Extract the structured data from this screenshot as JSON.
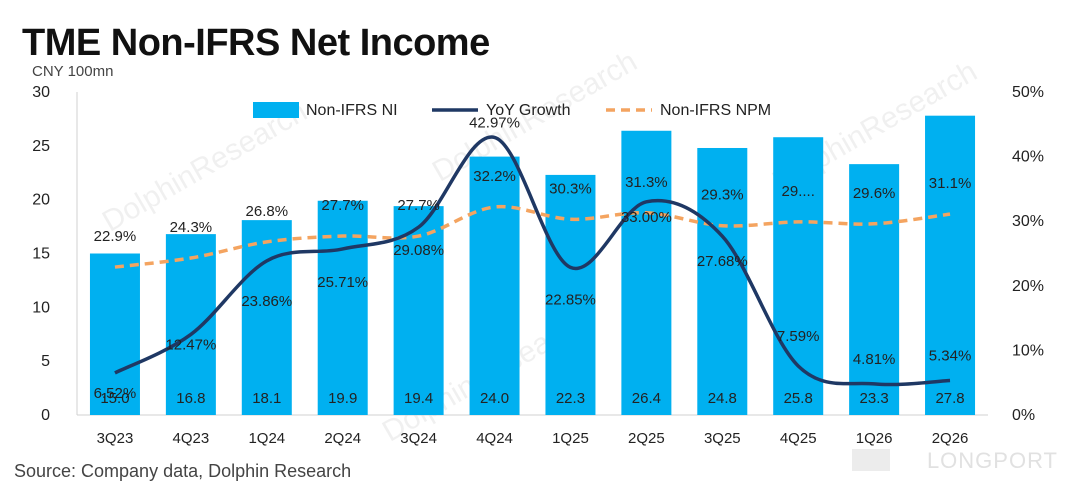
{
  "title": "TME Non-IFRS Net Income",
  "unit": "CNY 100mn",
  "source": "Source: Company data, Dolphin Research",
  "watermark": "LONGPORT",
  "diag_watermark": "DolphinResearch",
  "colors": {
    "bar": "#00b0f0",
    "growth_line": "#1f3864",
    "npm_line": "#f4a460"
  },
  "chart_data": {
    "type": "bar",
    "title": "TME Non-IFRS Net Income",
    "categories": [
      "3Q23",
      "4Q23",
      "1Q24",
      "2Q24",
      "3Q24",
      "4Q24",
      "1Q25",
      "2Q25",
      "3Q25",
      "4Q25",
      "1Q26",
      "2Q26"
    ],
    "series": [
      {
        "name": "Non-IFRS NI",
        "type": "bar",
        "axis": "left",
        "values": [
          15.0,
          16.8,
          18.1,
          19.9,
          19.4,
          24.0,
          22.3,
          26.4,
          24.8,
          25.8,
          23.3,
          27.8
        ],
        "labels": [
          "15.0",
          "16.8",
          "18.1",
          "19.9",
          "19.4",
          "24.0",
          "22.3",
          "26.4",
          "24.8",
          "25.8",
          "23.3",
          "27.8"
        ]
      },
      {
        "name": "YoY Growth",
        "type": "line",
        "axis": "right",
        "values": [
          6.52,
          12.47,
          23.86,
          25.71,
          29.08,
          42.97,
          22.85,
          33.0,
          27.68,
          7.59,
          4.81,
          5.34
        ],
        "labels": [
          "6.52%",
          "12.47%",
          "23.86%",
          "25.71%",
          "29.08%",
          "42.97%",
          "22.85%",
          "33.00%",
          "27.68%",
          "7.59%",
          "4.81%",
          "5.34%"
        ]
      },
      {
        "name": "Non-IFRS NPM",
        "type": "line",
        "style": "dashed",
        "axis": "right",
        "values": [
          22.9,
          24.3,
          26.8,
          27.7,
          27.7,
          32.2,
          30.3,
          31.3,
          29.3,
          29.9,
          29.6,
          31.1
        ],
        "labels": [
          "22.9%",
          "24.3%",
          "26.8%",
          "27.7%",
          "27.7%",
          "32.2%",
          "30.3%",
          "31.3%",
          "29.3%",
          "29....",
          "29.6%",
          "31.1%"
        ]
      }
    ],
    "y_left": {
      "min": 0,
      "max": 30,
      "ticks": [
        "0",
        "5",
        "10",
        "15",
        "20",
        "25",
        "30"
      ]
    },
    "y_right": {
      "min": 0,
      "max": 50,
      "ticks": [
        "0%",
        "10%",
        "20%",
        "30%",
        "40%",
        "50%"
      ]
    },
    "legend": "top-center",
    "grid": false
  }
}
